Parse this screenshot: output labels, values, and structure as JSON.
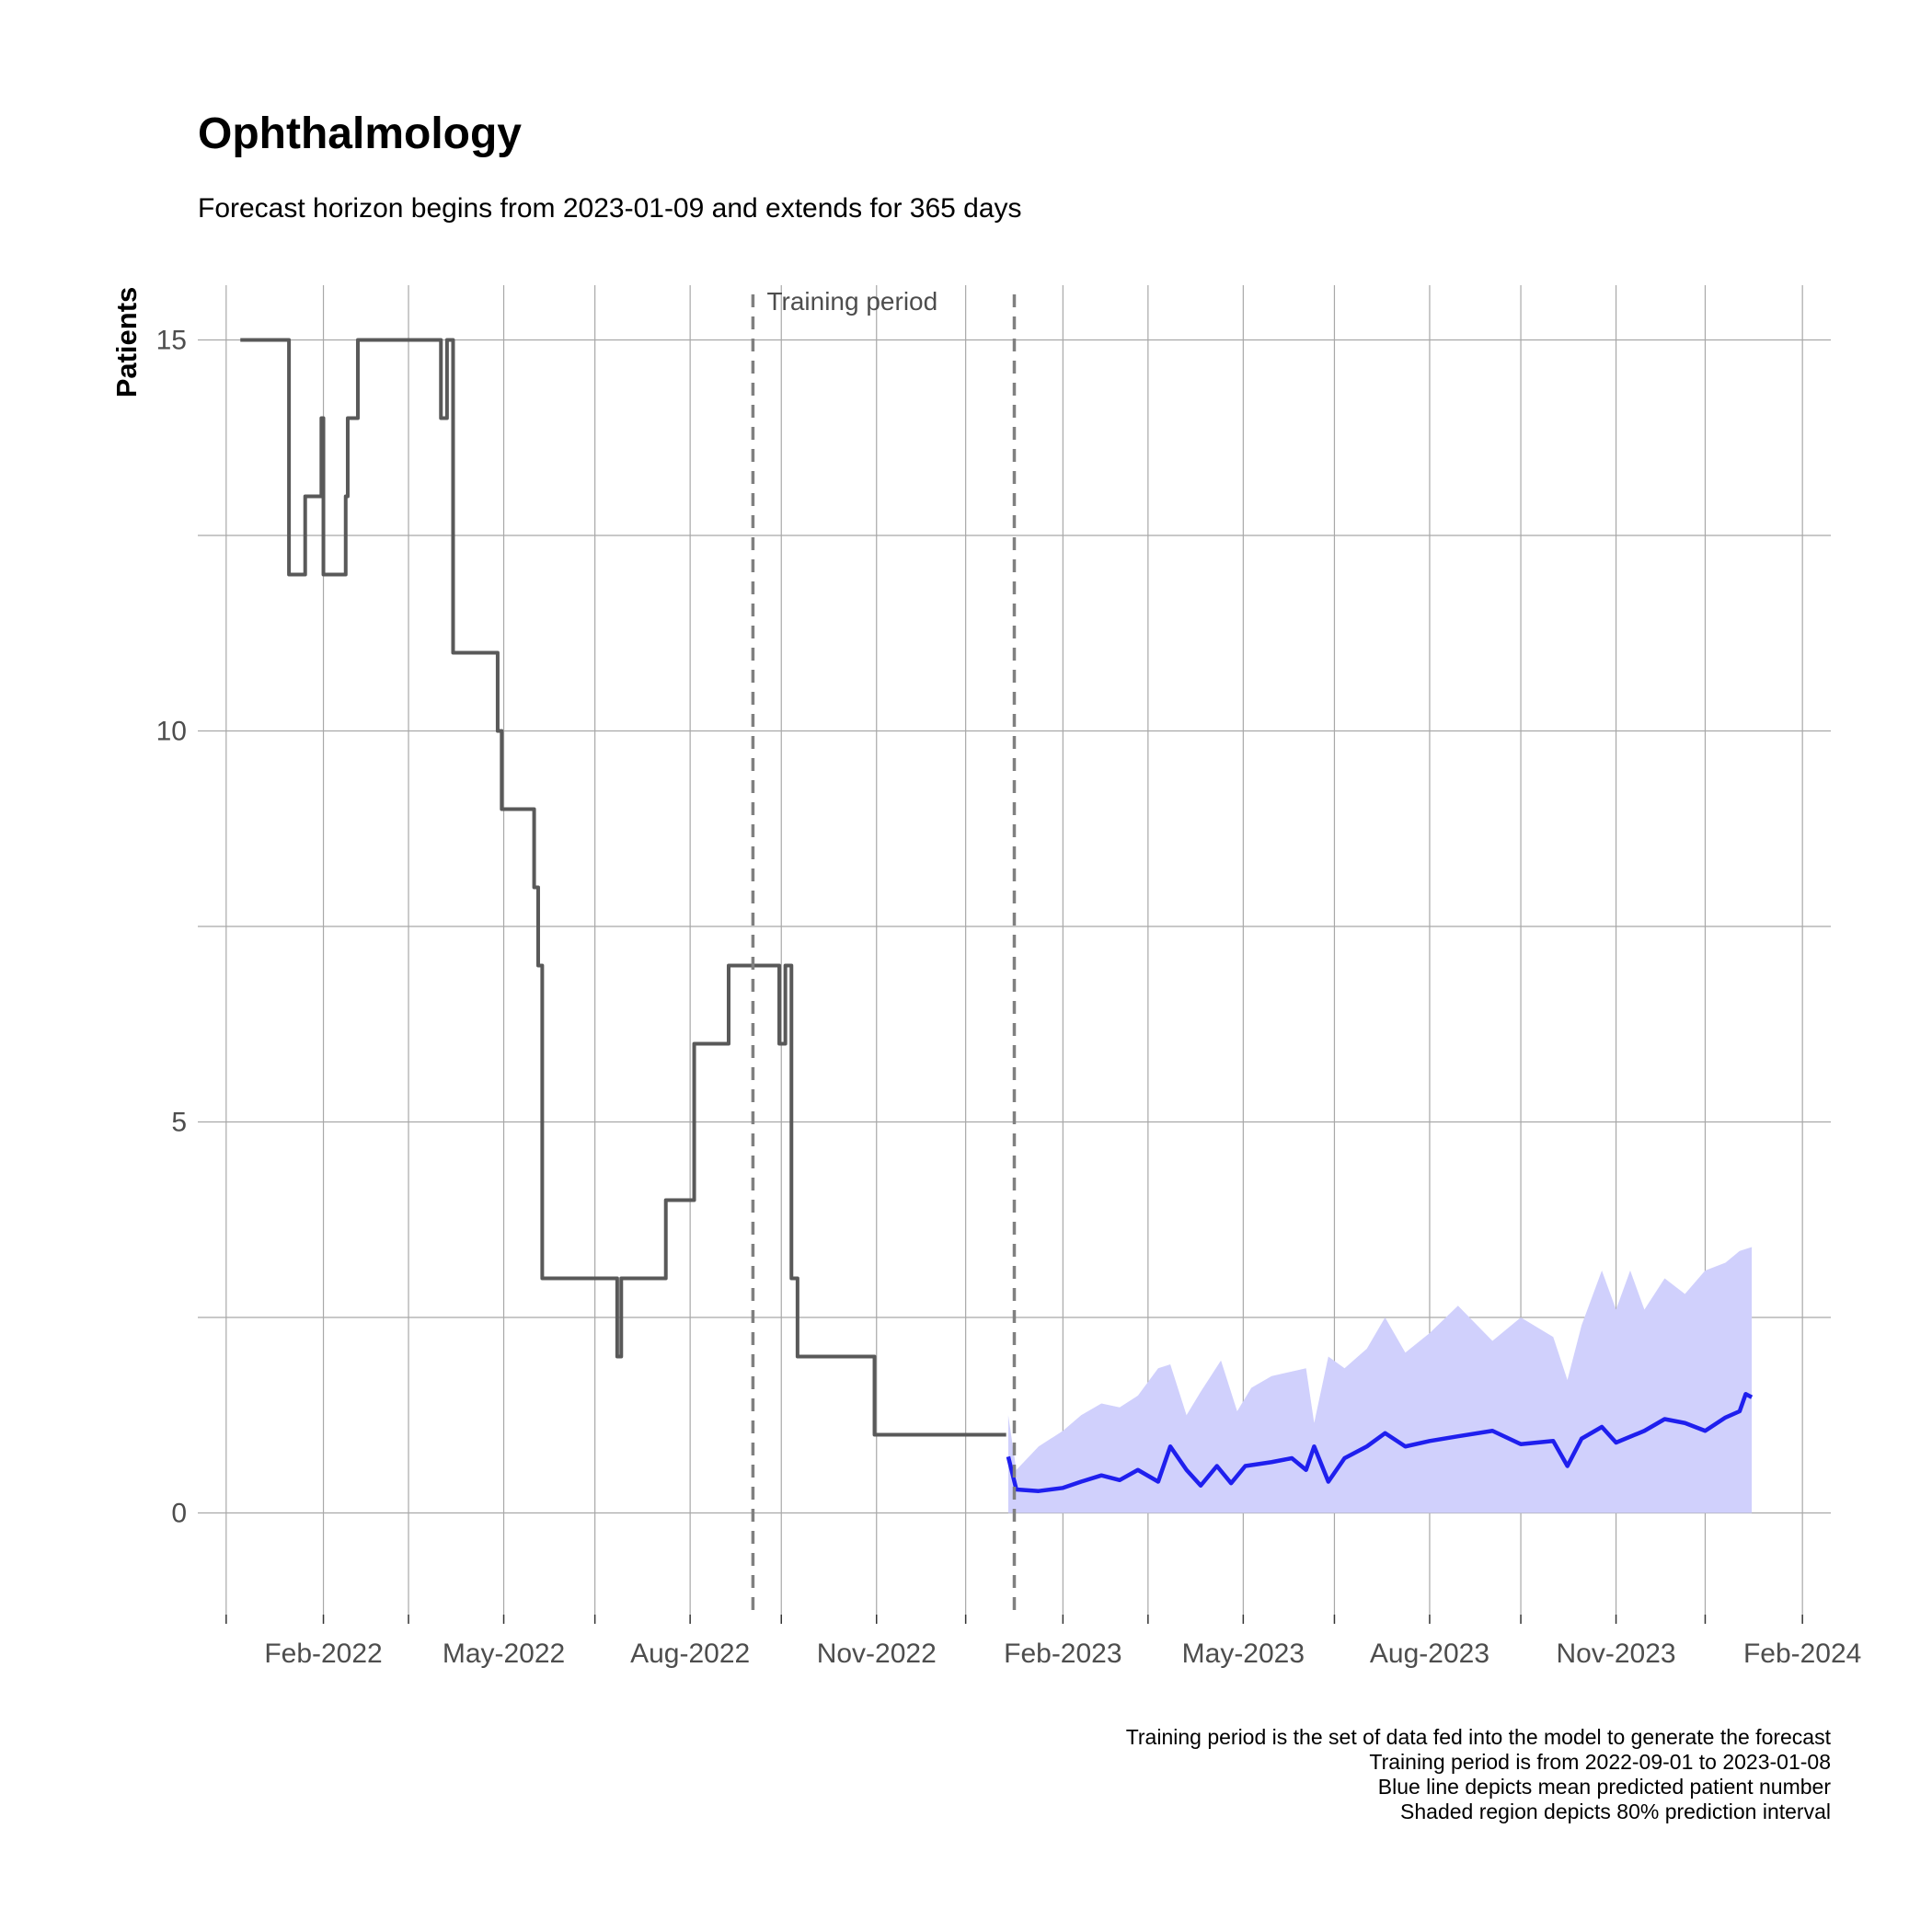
{
  "chart_data": {
    "type": "line",
    "title": "Ophthalmology",
    "subtitle": "Forecast horizon begins from 2023-01-09 and extends for 365 days",
    "xlabel": "",
    "ylabel": "Patients",
    "xlim": [
      "2021-12-01",
      "2024-02-15"
    ],
    "ylim": [
      -1.3,
      15.7
    ],
    "x_ticks": [
      {
        "date": "2022-02-01",
        "label": "Feb-2022"
      },
      {
        "date": "2022-05-01",
        "label": "May-2022"
      },
      {
        "date": "2022-08-01",
        "label": "Aug-2022"
      },
      {
        "date": "2022-11-01",
        "label": "Nov-2022"
      },
      {
        "date": "2023-02-01",
        "label": "Feb-2023"
      },
      {
        "date": "2023-05-01",
        "label": "May-2023"
      },
      {
        "date": "2023-08-01",
        "label": "Aug-2023"
      },
      {
        "date": "2023-11-01",
        "label": "Nov-2023"
      },
      {
        "date": "2024-02-01",
        "label": "Feb-2024"
      }
    ],
    "x_minor_ticks": [
      "2021-12-15",
      "2022-03-15",
      "2022-06-15",
      "2022-09-15",
      "2022-12-15",
      "2023-03-15",
      "2023-06-15",
      "2023-09-15",
      "2023-12-15"
    ],
    "y_ticks": [
      0,
      5,
      10,
      15
    ],
    "y_minor_ticks": [
      2.5,
      7.5,
      12.5
    ],
    "grid": true,
    "annotations": [
      {
        "text": "Training period",
        "x": "2022-10-20",
        "y": 15.5
      }
    ],
    "vlines": [
      {
        "x": "2022-09-01",
        "style": "dashed",
        "color": "#808080"
      },
      {
        "x": "2023-01-08",
        "style": "dashed",
        "color": "#808080"
      }
    ],
    "series": [
      {
        "type": "step",
        "color": "#595959",
        "points": [
          [
            "2021-12-22",
            15
          ],
          [
            "2022-01-14",
            15
          ],
          [
            "2022-01-15",
            12
          ],
          [
            "2022-01-22",
            12
          ],
          [
            "2022-01-23",
            13
          ],
          [
            "2022-01-30",
            13
          ],
          [
            "2022-01-31",
            14
          ],
          [
            "2022-02-01",
            12
          ],
          [
            "2022-02-11",
            12
          ],
          [
            "2022-02-12",
            13
          ],
          [
            "2022-02-13",
            14
          ],
          [
            "2022-02-17",
            14
          ],
          [
            "2022-02-18",
            15
          ],
          [
            "2022-03-30",
            15
          ],
          [
            "2022-03-31",
            14
          ],
          [
            "2022-04-03",
            15
          ],
          [
            "2022-04-06",
            11
          ],
          [
            "2022-04-26",
            11
          ],
          [
            "2022-04-28",
            10
          ],
          [
            "2022-04-30",
            9
          ],
          [
            "2022-05-15",
            9
          ],
          [
            "2022-05-16",
            8
          ],
          [
            "2022-05-18",
            7
          ],
          [
            "2022-05-20",
            3
          ],
          [
            "2022-06-25",
            3
          ],
          [
            "2022-06-26",
            2
          ],
          [
            "2022-06-28",
            3
          ],
          [
            "2022-07-19",
            3
          ],
          [
            "2022-07-20",
            4
          ],
          [
            "2022-08-02",
            4
          ],
          [
            "2022-08-03",
            6
          ],
          [
            "2022-08-19",
            6
          ],
          [
            "2022-08-20",
            7
          ],
          [
            "2022-09-12",
            7
          ],
          [
            "2022-09-14",
            6
          ],
          [
            "2022-09-17",
            7
          ],
          [
            "2022-09-20",
            3
          ],
          [
            "2022-09-23",
            2
          ],
          [
            "2022-10-30",
            2
          ],
          [
            "2022-10-31",
            1
          ],
          [
            "2023-01-04",
            1
          ]
        ]
      },
      {
        "type": "line",
        "color": "#1f1fee",
        "points": [
          [
            "2023-01-05",
            0.72
          ],
          [
            "2023-01-09",
            0.3
          ],
          [
            "2023-01-20",
            0.28
          ],
          [
            "2023-02-01",
            0.32
          ],
          [
            "2023-02-10",
            0.4
          ],
          [
            "2023-02-20",
            0.48
          ],
          [
            "2023-03-01",
            0.42
          ],
          [
            "2023-03-10",
            0.55
          ],
          [
            "2023-03-20",
            0.4
          ],
          [
            "2023-03-26",
            0.85
          ],
          [
            "2023-04-03",
            0.55
          ],
          [
            "2023-04-10",
            0.35
          ],
          [
            "2023-04-18",
            0.6
          ],
          [
            "2023-04-25",
            0.38
          ],
          [
            "2023-05-02",
            0.6
          ],
          [
            "2023-05-15",
            0.65
          ],
          [
            "2023-05-25",
            0.7
          ],
          [
            "2023-06-01",
            0.55
          ],
          [
            "2023-06-05",
            0.85
          ],
          [
            "2023-06-12",
            0.4
          ],
          [
            "2023-06-20",
            0.7
          ],
          [
            "2023-07-01",
            0.85
          ],
          [
            "2023-07-10",
            1.02
          ],
          [
            "2023-07-20",
            0.85
          ],
          [
            "2023-08-01",
            0.92
          ],
          [
            "2023-08-15",
            0.98
          ],
          [
            "2023-09-01",
            1.05
          ],
          [
            "2023-09-15",
            0.88
          ],
          [
            "2023-10-01",
            0.92
          ],
          [
            "2023-10-08",
            0.6
          ],
          [
            "2023-10-15",
            0.95
          ],
          [
            "2023-10-25",
            1.1
          ],
          [
            "2023-11-01",
            0.9
          ],
          [
            "2023-11-15",
            1.05
          ],
          [
            "2023-11-25",
            1.2
          ],
          [
            "2023-12-05",
            1.15
          ],
          [
            "2023-12-15",
            1.05
          ],
          [
            "2023-12-25",
            1.22
          ],
          [
            "2024-01-01",
            1.3
          ],
          [
            "2024-01-04",
            1.52
          ],
          [
            "2024-01-07",
            1.48
          ]
        ]
      }
    ],
    "band": {
      "label": "80% prediction interval",
      "color": "#d0d0fc",
      "lower": 0,
      "upper_points": [
        [
          "2023-01-05",
          1.25
        ],
        [
          "2023-01-09",
          0.55
        ],
        [
          "2023-01-20",
          0.85
        ],
        [
          "2023-02-01",
          1.05
        ],
        [
          "2023-02-10",
          1.25
        ],
        [
          "2023-02-20",
          1.4
        ],
        [
          "2023-03-01",
          1.35
        ],
        [
          "2023-03-10",
          1.5
        ],
        [
          "2023-03-20",
          1.85
        ],
        [
          "2023-03-26",
          1.9
        ],
        [
          "2023-04-03",
          1.25
        ],
        [
          "2023-04-10",
          1.55
        ],
        [
          "2023-04-20",
          1.95
        ],
        [
          "2023-04-28",
          1.3
        ],
        [
          "2023-05-05",
          1.6
        ],
        [
          "2023-05-15",
          1.75
        ],
        [
          "2023-06-01",
          1.85
        ],
        [
          "2023-06-05",
          1.15
        ],
        [
          "2023-06-12",
          2.0
        ],
        [
          "2023-06-20",
          1.85
        ],
        [
          "2023-07-01",
          2.1
        ],
        [
          "2023-07-10",
          2.5
        ],
        [
          "2023-07-20",
          2.05
        ],
        [
          "2023-08-01",
          2.3
        ],
        [
          "2023-08-15",
          2.65
        ],
        [
          "2023-09-01",
          2.2
        ],
        [
          "2023-09-15",
          2.5
        ],
        [
          "2023-10-01",
          2.25
        ],
        [
          "2023-10-08",
          1.7
        ],
        [
          "2023-10-15",
          2.4
        ],
        [
          "2023-10-25",
          3.1
        ],
        [
          "2023-11-01",
          2.6
        ],
        [
          "2023-11-08",
          3.1
        ],
        [
          "2023-11-15",
          2.6
        ],
        [
          "2023-11-25",
          3.0
        ],
        [
          "2023-12-05",
          2.8
        ],
        [
          "2023-12-15",
          3.1
        ],
        [
          "2023-12-25",
          3.2
        ],
        [
          "2024-01-01",
          3.35
        ],
        [
          "2024-01-07",
          3.4
        ]
      ]
    }
  },
  "caption": [
    "Training period is the set of data fed into the model to generate the forecast",
    "Training period is from 2022-09-01 to 2023-01-08",
    "Blue line depicts mean predicted patient number",
    "Shaded region depicts 80% prediction interval"
  ]
}
